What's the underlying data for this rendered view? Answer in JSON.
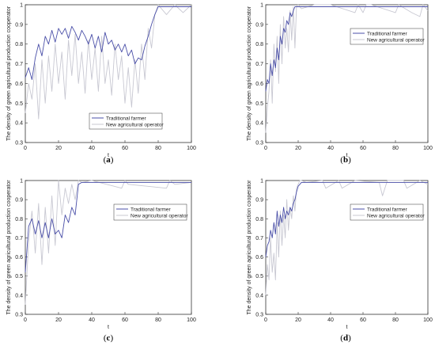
{
  "figure": {
    "colors": {
      "traditional": "#4a4fa8",
      "new_operator": "#c8c8d2",
      "axes": "#333333"
    },
    "panels": [
      {
        "label": "a"
      },
      {
        "label": "b"
      },
      {
        "label": "c"
      },
      {
        "label": "d"
      }
    ]
  },
  "chart_data": [
    {
      "type": "line",
      "panel": "(a)",
      "xlabel": "t",
      "ylabel": "The density of green agricultural production cooperator",
      "xlim": [
        0,
        100
      ],
      "ylim": [
        0.3,
        1
      ],
      "xticks": [
        0,
        20,
        40,
        60,
        80,
        100
      ],
      "yticks": [
        0.3,
        0.4,
        0.5,
        0.6,
        0.7,
        0.8,
        0.9,
        1
      ],
      "legend": "bottom-right",
      "series": [
        {
          "name": "Traditional farmer",
          "x": [
            0,
            2,
            4,
            6,
            8,
            10,
            12,
            14,
            16,
            18,
            20,
            22,
            24,
            26,
            28,
            30,
            32,
            34,
            36,
            38,
            40,
            42,
            44,
            46,
            48,
            50,
            52,
            54,
            56,
            58,
            60,
            62,
            64,
            66,
            68,
            70,
            72,
            74,
            76,
            78,
            80,
            85,
            90,
            95,
            100
          ],
          "y": [
            0.63,
            0.68,
            0.62,
            0.73,
            0.8,
            0.74,
            0.84,
            0.8,
            0.87,
            0.81,
            0.88,
            0.85,
            0.88,
            0.83,
            0.89,
            0.86,
            0.82,
            0.87,
            0.84,
            0.8,
            0.85,
            0.78,
            0.84,
            0.76,
            0.86,
            0.8,
            0.82,
            0.77,
            0.8,
            0.76,
            0.8,
            0.74,
            0.77,
            0.7,
            0.73,
            0.72,
            0.79,
            0.84,
            0.9,
            0.95,
            0.99,
            0.99,
            0.99,
            0.99,
            0.99
          ]
        },
        {
          "name": "New agricultural operator",
          "x": [
            0,
            2,
            4,
            6,
            8,
            10,
            12,
            14,
            16,
            18,
            20,
            22,
            24,
            26,
            28,
            30,
            32,
            34,
            36,
            38,
            40,
            42,
            44,
            46,
            48,
            50,
            52,
            54,
            56,
            58,
            60,
            62,
            64,
            66,
            68,
            70,
            72,
            74,
            76,
            78,
            80,
            85,
            90,
            95,
            100
          ],
          "y": [
            0.45,
            0.6,
            0.52,
            0.7,
            0.42,
            0.72,
            0.5,
            0.74,
            0.56,
            0.8,
            0.6,
            0.76,
            0.52,
            0.82,
            0.64,
            0.85,
            0.6,
            0.76,
            0.55,
            0.82,
            0.62,
            0.78,
            0.56,
            0.84,
            0.6,
            0.72,
            0.54,
            0.8,
            0.62,
            0.74,
            0.5,
            0.68,
            0.48,
            0.72,
            0.55,
            0.8,
            0.62,
            0.88,
            0.78,
            0.95,
            1.0,
            0.95,
            1.0,
            0.96,
            1.0
          ]
        }
      ]
    },
    {
      "type": "line",
      "panel": "(b)",
      "xlabel": "t",
      "ylabel": "The density of green agricultural production cooperator",
      "xlim": [
        0,
        100
      ],
      "ylim": [
        0.3,
        1
      ],
      "xticks": [
        0,
        20,
        40,
        60,
        80,
        100
      ],
      "yticks": [
        0.3,
        0.4,
        0.5,
        0.6,
        0.7,
        0.8,
        0.9,
        1
      ],
      "legend": "top-right",
      "series": [
        {
          "name": "Traditional farmer",
          "x": [
            0,
            1,
            2,
            3,
            4,
            5,
            6,
            7,
            8,
            9,
            10,
            11,
            12,
            13,
            14,
            15,
            16,
            17,
            18,
            19,
            20,
            25,
            30,
            40,
            50,
            60,
            70,
            80,
            90,
            100
          ],
          "y": [
            0.56,
            0.62,
            0.6,
            0.7,
            0.64,
            0.72,
            0.68,
            0.78,
            0.72,
            0.84,
            0.8,
            0.88,
            0.86,
            0.92,
            0.9,
            0.96,
            0.94,
            0.97,
            0.99,
            0.99,
            0.99,
            0.99,
            0.99,
            0.99,
            0.99,
            0.99,
            0.99,
            0.99,
            0.99,
            0.99
          ]
        },
        {
          "name": "New agricultural operator",
          "x": [
            0,
            1,
            2,
            3,
            4,
            5,
            6,
            7,
            8,
            9,
            10,
            11,
            12,
            13,
            14,
            15,
            16,
            17,
            18,
            19,
            20,
            22,
            30,
            40,
            55,
            57,
            60,
            62,
            65,
            80,
            82,
            90,
            95,
            97,
            100
          ],
          "y": [
            0.35,
            0.48,
            0.56,
            0.72,
            0.5,
            0.8,
            0.66,
            0.84,
            0.6,
            0.9,
            0.7,
            0.94,
            0.78,
            0.88,
            0.76,
            0.97,
            0.82,
            0.99,
            0.78,
            0.99,
            1.0,
            0.98,
            1.0,
            1.0,
            0.96,
            1.0,
            0.96,
            1.0,
            1.0,
            0.96,
            1.0,
            0.96,
            0.94,
            1.0,
            0.97
          ]
        }
      ]
    },
    {
      "type": "line",
      "panel": "(c)",
      "xlabel": "t",
      "ylabel": "The density of green agricultural production cooperator",
      "xlim": [
        0,
        100
      ],
      "ylim": [
        0.3,
        1
      ],
      "xticks": [
        0,
        20,
        40,
        60,
        80,
        100
      ],
      "yticks": [
        0.3,
        0.4,
        0.5,
        0.6,
        0.7,
        0.8,
        0.9,
        1
      ],
      "legend": "top-right",
      "series": [
        {
          "name": "Traditional farmer",
          "x": [
            0,
            2,
            4,
            6,
            8,
            10,
            12,
            14,
            16,
            18,
            20,
            22,
            24,
            26,
            28,
            30,
            32,
            34,
            40,
            50,
            60,
            70,
            80,
            90,
            100
          ],
          "y": [
            0.52,
            0.76,
            0.8,
            0.72,
            0.79,
            0.7,
            0.78,
            0.7,
            0.8,
            0.72,
            0.74,
            0.7,
            0.82,
            0.78,
            0.86,
            0.82,
            0.98,
            0.99,
            0.99,
            0.99,
            0.99,
            0.99,
            0.99,
            0.99,
            0.99
          ]
        },
        {
          "name": "New agricultural operator",
          "x": [
            0,
            2,
            4,
            6,
            8,
            10,
            12,
            14,
            16,
            18,
            20,
            22,
            24,
            26,
            28,
            30,
            32,
            34,
            40,
            58,
            60,
            62,
            85,
            87,
            90,
            100
          ],
          "y": [
            0.35,
            0.68,
            0.84,
            0.62,
            0.88,
            0.56,
            0.86,
            0.62,
            0.92,
            0.66,
            1.0,
            0.82,
            0.96,
            0.88,
            0.98,
            0.9,
            1.0,
            0.99,
            1.0,
            0.96,
            1.0,
            0.98,
            0.96,
            1.0,
            0.98,
            0.99
          ]
        }
      ]
    },
    {
      "type": "line",
      "panel": "(d)",
      "xlabel": "t",
      "ylabel": "The density of green agricultural production cooperator",
      "xlim": [
        0,
        100
      ],
      "ylim": [
        0.3,
        1
      ],
      "xticks": [
        0,
        20,
        40,
        60,
        80,
        100
      ],
      "yticks": [
        0.3,
        0.4,
        0.5,
        0.6,
        0.7,
        0.8,
        0.9,
        1
      ],
      "legend": "top-right",
      "series": [
        {
          "name": "Traditional farmer",
          "x": [
            0,
            1,
            2,
            3,
            4,
            5,
            6,
            7,
            8,
            9,
            10,
            11,
            12,
            13,
            14,
            15,
            16,
            17,
            18,
            19,
            20,
            21,
            22,
            25,
            30,
            40,
            50,
            60,
            70,
            80,
            90,
            100
          ],
          "y": [
            0.6,
            0.66,
            0.68,
            0.74,
            0.7,
            0.78,
            0.72,
            0.84,
            0.76,
            0.82,
            0.78,
            0.86,
            0.8,
            0.84,
            0.82,
            0.86,
            0.84,
            0.88,
            0.9,
            0.94,
            0.97,
            0.98,
            0.99,
            0.99,
            0.99,
            0.99,
            0.99,
            0.99,
            0.99,
            0.99,
            0.99,
            0.99
          ]
        },
        {
          "name": "New agricultural operator",
          "x": [
            0,
            1,
            2,
            3,
            4,
            5,
            6,
            7,
            8,
            9,
            10,
            11,
            12,
            13,
            14,
            15,
            16,
            17,
            18,
            19,
            20,
            21,
            22,
            25,
            35,
            37,
            45,
            47,
            55,
            70,
            72,
            75,
            85,
            87,
            95,
            100
          ],
          "y": [
            0.4,
            0.56,
            0.48,
            0.7,
            0.52,
            0.62,
            0.48,
            0.78,
            0.6,
            0.84,
            0.66,
            0.82,
            0.7,
            0.9,
            0.74,
            0.86,
            0.8,
            0.92,
            0.84,
            0.96,
            0.98,
            1.0,
            1.0,
            0.99,
            1.0,
            0.96,
            1.0,
            0.96,
            1.0,
            0.99,
            0.92,
            1.0,
            1.0,
            0.96,
            1.0,
            0.98
          ]
        }
      ]
    }
  ]
}
